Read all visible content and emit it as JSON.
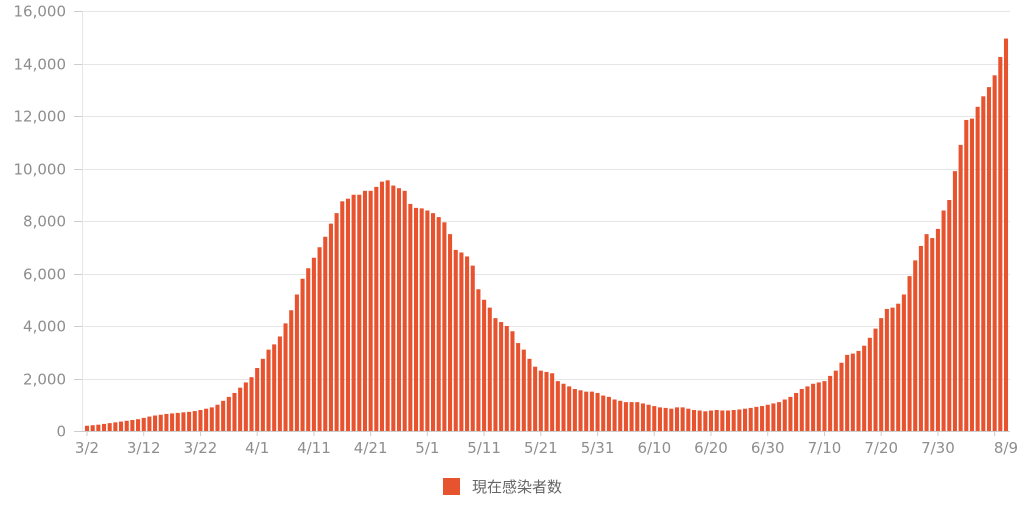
{
  "colors": {
    "bar": "#e8532f",
    "grid": "#e6e6e6",
    "axis": "#cccccc",
    "label": "#8e8e8e"
  },
  "chart_data": {
    "type": "bar",
    "title": "",
    "xlabel": "",
    "ylabel": "",
    "ylim": [
      0,
      16000
    ],
    "yticks": [
      0,
      2000,
      4000,
      6000,
      8000,
      10000,
      12000,
      14000,
      16000
    ],
    "ytick_labels": [
      "0",
      "2,000",
      "4,000",
      "6,000",
      "8,000",
      "10,000",
      "12,000",
      "14,000",
      "16,000"
    ],
    "xtick_labels": [
      "3/2",
      "3/12",
      "3/22",
      "4/1",
      "4/11",
      "4/21",
      "5/1",
      "5/11",
      "5/21",
      "5/31",
      "6/10",
      "6/20",
      "6/30",
      "7/10",
      "7/20",
      "7/30",
      "8/9"
    ],
    "xtick_every": 10,
    "grid": true,
    "legend": {
      "position": "bottom-center",
      "entries": [
        {
          "label": "現在感染者数",
          "color": "#e8532f"
        }
      ]
    },
    "series": [
      {
        "name": "現在感染者数",
        "values": [
          200,
          220,
          240,
          270,
          300,
          330,
          360,
          390,
          420,
          450,
          500,
          550,
          590,
          620,
          650,
          670,
          690,
          710,
          730,
          760,
          800,
          850,
          900,
          1000,
          1150,
          1300,
          1450,
          1650,
          1850,
          2050,
          2400,
          2750,
          3100,
          3300,
          3600,
          4100,
          4600,
          5200,
          5800,
          6200,
          6600,
          7000,
          7400,
          7900,
          8300,
          8750,
          8850,
          9000,
          9000,
          9150,
          9150,
          9300,
          9500,
          9550,
          9350,
          9250,
          9150,
          8650,
          8500,
          8480,
          8400,
          8300,
          8150,
          7950,
          7500,
          6900,
          6800,
          6650,
          6300,
          5400,
          5000,
          4700,
          4300,
          4150,
          4000,
          3800,
          3350,
          3100,
          2750,
          2450,
          2300,
          2250,
          2200,
          1900,
          1800,
          1700,
          1600,
          1550,
          1500,
          1500,
          1450,
          1350,
          1300,
          1200,
          1150,
          1100,
          1100,
          1100,
          1050,
          1000,
          950,
          900,
          880,
          850,
          900,
          900,
          850,
          800,
          780,
          750,
          780,
          800,
          780,
          780,
          800,
          820,
          850,
          880,
          920,
          950,
          1000,
          1050,
          1100,
          1200,
          1300,
          1450,
          1600,
          1700,
          1800,
          1850,
          1900,
          2100,
          2300,
          2600,
          2900,
          2950,
          3050,
          3250,
          3550,
          3900,
          4300,
          4650,
          4700,
          4850,
          5200,
          5900,
          6500,
          7050,
          7500,
          7350,
          7700,
          8400,
          8800,
          9900,
          10900,
          11850,
          11900,
          12350,
          12750,
          13100,
          13550,
          14250,
          14950
        ]
      }
    ]
  }
}
